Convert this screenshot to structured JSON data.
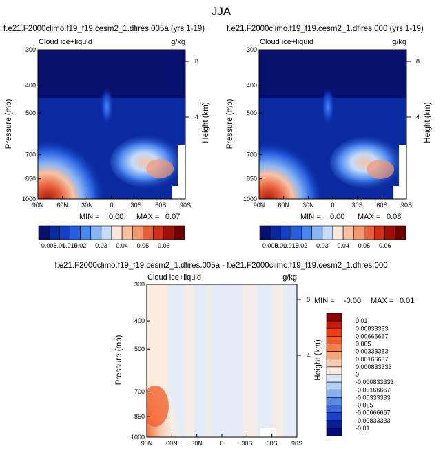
{
  "page_title": "JJA",
  "chart_data": [
    {
      "type": "heatmap",
      "title": "f.e21.F2000climo.f19_f19.cesm2_1.dfires.005a (yrs 1-19)",
      "variable_label": "Cloud ice+liquid",
      "units": "g/kg",
      "xlabel": "",
      "ylabel": "Pressure (mb)",
      "y2label": "Height (km)",
      "x_ticks": [
        "90N",
        "60N",
        "30N",
        "0",
        "30S",
        "60S",
        "90S"
      ],
      "y_ticks": [
        300,
        400,
        500,
        700,
        850,
        1000
      ],
      "y2_ticks": [
        8,
        4
      ],
      "ylim": [
        1000,
        300
      ],
      "min_label": "MIN =",
      "min_value": "0.00",
      "max_label": "MAX =",
      "max_value": "0.07",
      "colorbar_levels": [
        "0.005",
        "0.01",
        "0.015",
        "0.02",
        "0.03",
        "0.04",
        "0.05",
        "0.06"
      ]
    },
    {
      "type": "heatmap",
      "title": "f.e21.F2000climo.f19_f19.cesm2_1.dfires.000 (yrs 1-19)",
      "variable_label": "Cloud ice+liquid",
      "units": "g/kg",
      "xlabel": "",
      "ylabel": "Pressure (mb)",
      "y2label": "Height (km)",
      "x_ticks": [
        "90N",
        "60N",
        "30N",
        "0",
        "30S",
        "60S",
        "90S"
      ],
      "y_ticks": [
        300,
        400,
        500,
        700,
        850,
        1000
      ],
      "y2_ticks": [
        8,
        4
      ],
      "ylim": [
        1000,
        300
      ],
      "min_label": "MIN =",
      "min_value": "0.00",
      "max_label": "MAX =",
      "max_value": "0.08",
      "colorbar_levels": [
        "0.005",
        "0.01",
        "0.015",
        "0.02",
        "0.03",
        "0.04",
        "0.05",
        "0.06"
      ]
    },
    {
      "type": "heatmap",
      "title": "f.e21.F2000climo.f19_f19.cesm2_1.dfires.005a - f.e21.F2000climo.f19_f19.cesm2_1.dfires.000",
      "variable_label": "Cloud ice+liquid",
      "units": "g/kg",
      "xlabel": "",
      "ylabel": "Pressure (mb)",
      "y2label": "Height (km)",
      "x_ticks": [
        "90N",
        "60N",
        "30N",
        "0",
        "30S",
        "60S",
        "90S"
      ],
      "y_ticks": [
        300,
        400,
        500,
        700,
        850,
        1000
      ],
      "y2_ticks": [
        8,
        4
      ],
      "ylim": [
        1000,
        300
      ],
      "min_label": "MIN =",
      "min_value": "-0.00",
      "max_label": "MAX =",
      "max_value": "0.01",
      "colorbar_levels": [
        "0.01",
        "0.00833333",
        "0.00666667",
        "0.005",
        "0.00333333",
        "0.00166667",
        "0.000833333",
        "0",
        "-0.000833333",
        "-0.00166667",
        "-0.00333333",
        "-0.005",
        "-0.00666667",
        "-0.00833333",
        "-0.01"
      ]
    }
  ],
  "colors": {
    "seq_palette": [
      "#08106e",
      "#0a2aa0",
      "#1440c8",
      "#2660e0",
      "#4a86f0",
      "#86b4f6",
      "#c4dcfa",
      "#fbe8dc",
      "#f7c2a4",
      "#f4966e",
      "#e8603a",
      "#d03018",
      "#a01008",
      "#6e0000"
    ],
    "diff_palette": [
      "#8a0000",
      "#c41a06",
      "#e83e14",
      "#f45a24",
      "#f6804a",
      "#f6a478",
      "#f8cbb0",
      "#faecdf",
      "#d6e8fa",
      "#b2d0f6",
      "#86b0ee",
      "#5a8ae6",
      "#3868dc",
      "#1a42c8",
      "#0a1e9a",
      "#030a7a"
    ]
  }
}
